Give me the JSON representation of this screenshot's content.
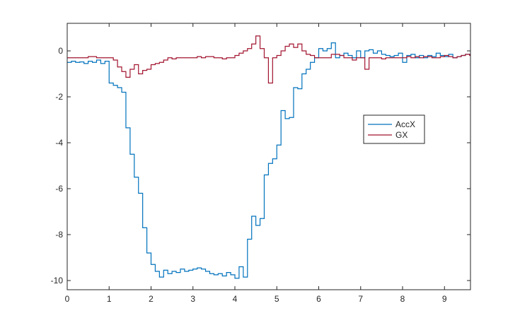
{
  "chart_data": {
    "type": "line",
    "title": "",
    "xlabel": "",
    "ylabel": "",
    "xlim": [
      0,
      9.62
    ],
    "ylim": [
      -10.4,
      1.2
    ],
    "xticks": [
      0,
      1,
      2,
      3,
      4,
      5,
      6,
      7,
      8,
      9
    ],
    "yticks": [
      -10,
      -8,
      -6,
      -4,
      -2,
      0
    ],
    "xtick_labels": [
      "0",
      "1",
      "2",
      "3",
      "4",
      "5",
      "6",
      "7",
      "8",
      "9"
    ],
    "ytick_labels": [
      "-10",
      "-8",
      "-6",
      "-4",
      "-2",
      "0"
    ],
    "grid": false,
    "legend_position": "right-middle",
    "step": true,
    "series": [
      {
        "name": "AccX",
        "color": "#0072BD",
        "x": [
          0,
          0.1,
          0.2,
          0.3,
          0.4,
          0.5,
          0.6,
          0.7,
          0.8,
          0.9,
          1.0,
          1.1,
          1.2,
          1.3,
          1.4,
          1.5,
          1.6,
          1.7,
          1.8,
          1.9,
          2.0,
          2.1,
          2.2,
          2.3,
          2.4,
          2.5,
          2.6,
          2.7,
          2.8,
          2.9,
          3.0,
          3.1,
          3.2,
          3.3,
          3.4,
          3.5,
          3.6,
          3.7,
          3.8,
          3.9,
          4.0,
          4.1,
          4.2,
          4.3,
          4.4,
          4.5,
          4.6,
          4.7,
          4.8,
          4.9,
          5.0,
          5.1,
          5.2,
          5.3,
          5.4,
          5.5,
          5.6,
          5.7,
          5.8,
          5.9,
          6.0,
          6.1,
          6.2,
          6.3,
          6.4,
          6.5,
          6.6,
          6.7,
          6.8,
          6.9,
          7.0,
          7.1,
          7.2,
          7.3,
          7.4,
          7.5,
          7.6,
          7.7,
          7.8,
          7.9,
          8.0,
          8.1,
          8.2,
          8.3,
          8.4,
          8.5,
          8.6,
          8.7,
          8.8,
          8.9,
          9.0,
          9.1,
          9.2,
          9.3,
          9.4,
          9.5,
          9.6
        ],
        "values": [
          -0.5,
          -0.45,
          -0.5,
          -0.48,
          -0.55,
          -0.45,
          -0.5,
          -0.4,
          -0.55,
          -0.45,
          -1.4,
          -1.5,
          -1.6,
          -1.8,
          -3.35,
          -4.5,
          -5.5,
          -6.2,
          -7.7,
          -8.8,
          -9.3,
          -9.6,
          -9.85,
          -9.55,
          -9.7,
          -9.6,
          -9.65,
          -9.5,
          -9.6,
          -9.55,
          -9.5,
          -9.45,
          -9.5,
          -9.6,
          -9.7,
          -9.75,
          -9.7,
          -9.8,
          -9.65,
          -9.75,
          -9.9,
          -9.4,
          -9.85,
          -8.2,
          -7.2,
          -7.6,
          -7.3,
          -5.4,
          -4.9,
          -4.7,
          -4.1,
          -2.6,
          -2.95,
          -2.9,
          -1.6,
          -1.65,
          -1.0,
          -0.8,
          -0.5,
          -0.3,
          0.1,
          0.0,
          0.1,
          0.35,
          -0.3,
          -0.2,
          -0.1,
          -0.2,
          -0.3,
          0.0,
          -0.3,
          0.0,
          0.05,
          -0.1,
          0.0,
          -0.15,
          -0.2,
          -0.25,
          -0.2,
          -0.1,
          -0.5,
          -0.2,
          -0.15,
          -0.3,
          -0.2,
          -0.3,
          -0.2,
          -0.25,
          -0.1,
          -0.2,
          -0.25,
          -0.15,
          -0.3,
          -0.25,
          -0.2,
          -0.15,
          -0.15
        ]
      },
      {
        "name": "GX",
        "color": "#A2142F",
        "x": [
          0,
          0.1,
          0.2,
          0.3,
          0.4,
          0.5,
          0.6,
          0.7,
          0.8,
          0.9,
          1.0,
          1.1,
          1.2,
          1.3,
          1.4,
          1.5,
          1.6,
          1.7,
          1.8,
          1.9,
          2.0,
          2.1,
          2.2,
          2.3,
          2.4,
          2.5,
          2.6,
          2.7,
          2.8,
          2.9,
          3.0,
          3.1,
          3.2,
          3.3,
          3.4,
          3.5,
          3.6,
          3.7,
          3.8,
          3.9,
          4.0,
          4.1,
          4.2,
          4.3,
          4.4,
          4.5,
          4.6,
          4.7,
          4.8,
          4.9,
          5.0,
          5.1,
          5.2,
          5.3,
          5.4,
          5.5,
          5.6,
          5.7,
          5.8,
          5.9,
          6.0,
          6.1,
          6.2,
          6.3,
          6.4,
          6.5,
          6.6,
          6.7,
          6.8,
          6.9,
          7.0,
          7.1,
          7.2,
          7.3,
          7.4,
          7.5,
          7.6,
          7.7,
          7.8,
          7.9,
          8.0,
          8.1,
          8.2,
          8.3,
          8.4,
          8.5,
          8.6,
          8.7,
          8.8,
          8.9,
          9.0,
          9.1,
          9.2,
          9.3,
          9.4,
          9.5,
          9.6
        ],
        "values": [
          -0.3,
          -0.3,
          -0.3,
          -0.3,
          -0.3,
          -0.25,
          -0.25,
          -0.3,
          -0.3,
          -0.3,
          -0.3,
          -0.4,
          -0.7,
          -0.9,
          -1.15,
          -0.8,
          -0.6,
          -1.0,
          -0.85,
          -0.8,
          -0.6,
          -0.55,
          -0.5,
          -0.4,
          -0.3,
          -0.35,
          -0.3,
          -0.3,
          -0.3,
          -0.3,
          -0.3,
          -0.25,
          -0.3,
          -0.25,
          -0.25,
          -0.3,
          -0.3,
          -0.35,
          -0.3,
          -0.3,
          -0.2,
          -0.1,
          0.0,
          0.1,
          0.3,
          0.65,
          0.1,
          -0.3,
          -1.4,
          -0.3,
          -0.2,
          0.0,
          0.2,
          0.3,
          0.15,
          0.3,
          0.0,
          -0.15,
          -0.2,
          -0.3,
          -0.3,
          -0.3,
          -0.3,
          -0.15,
          -0.15,
          -0.2,
          -0.3,
          -0.3,
          -0.4,
          -0.3,
          -0.3,
          -0.8,
          -0.3,
          -0.3,
          -0.3,
          -0.35,
          -0.3,
          -0.3,
          -0.3,
          -0.3,
          -0.3,
          -0.25,
          -0.3,
          -0.25,
          -0.3,
          -0.25,
          -0.25,
          -0.3,
          -0.3,
          -0.25,
          -0.2,
          -0.25,
          -0.3,
          -0.25,
          -0.2,
          -0.15,
          -0.2
        ]
      }
    ]
  }
}
